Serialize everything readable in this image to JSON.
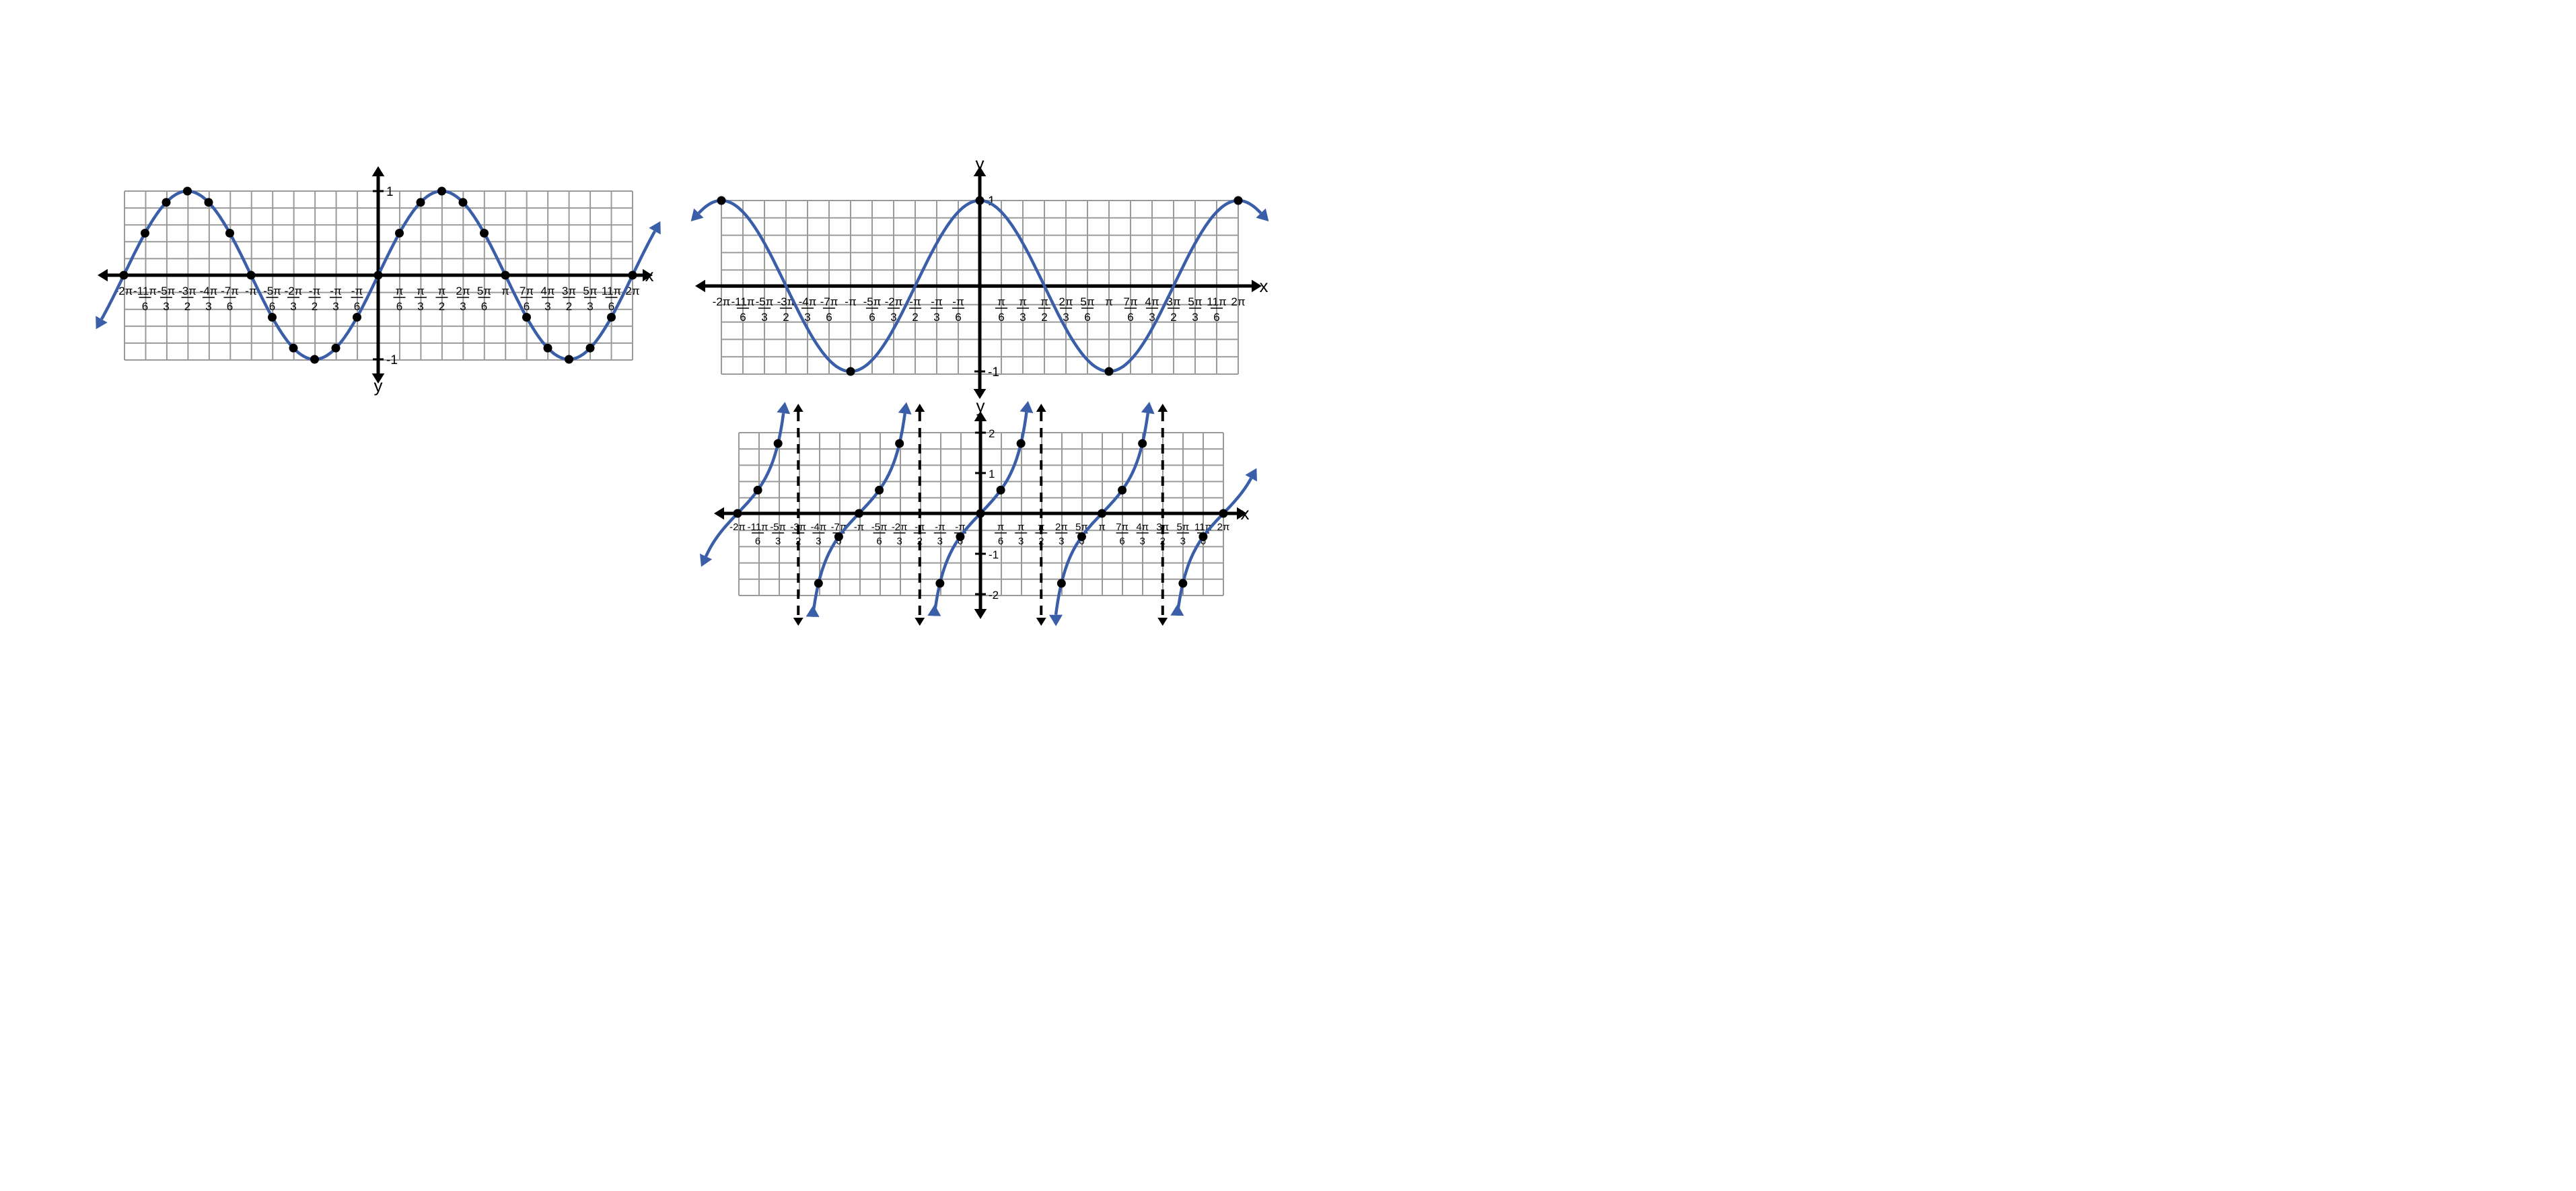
{
  "colors": {
    "curve": "#3a5fa8",
    "grid": "#9a9a9a",
    "axis": "#000000",
    "points": "#000000"
  },
  "icons": {
    "axis_arrow": "arrowhead",
    "curve_arrow": "arrowhead"
  },
  "chart_data": [
    {
      "type": "line",
      "function": "sin",
      "xlim": [
        -6.2832,
        6.2832
      ],
      "ylim": [
        -1,
        1
      ],
      "xlabel": "x",
      "ylabel": "y",
      "grid": true,
      "x_tick_labels": [
        {
          "num": "-2π",
          "den": "",
          "value": -6.2832
        },
        {
          "num": "-11π",
          "den": "6",
          "value": -5.7596
        },
        {
          "num": "-5π",
          "den": "3",
          "value": -5.236
        },
        {
          "num": "-3π",
          "den": "2",
          "value": -4.7124
        },
        {
          "num": "-4π",
          "den": "3",
          "value": -4.1888
        },
        {
          "num": "-7π",
          "den": "6",
          "value": -3.6652
        },
        {
          "num": "-π",
          "den": "",
          "value": -3.1416
        },
        {
          "num": "-5π",
          "den": "6",
          "value": -2.618
        },
        {
          "num": "-2π",
          "den": "3",
          "value": -2.0944
        },
        {
          "num": "-π",
          "den": "2",
          "value": -1.5708
        },
        {
          "num": "-π",
          "den": "3",
          "value": -1.0472
        },
        {
          "num": "-π",
          "den": "6",
          "value": -0.5236
        },
        {
          "num": "π",
          "den": "6",
          "value": 0.5236
        },
        {
          "num": "π",
          "den": "3",
          "value": 1.0472
        },
        {
          "num": "π",
          "den": "2",
          "value": 1.5708
        },
        {
          "num": "2π",
          "den": "3",
          "value": 2.0944
        },
        {
          "num": "5π",
          "den": "6",
          "value": 2.618
        },
        {
          "num": "π",
          "den": "",
          "value": 3.1416
        },
        {
          "num": "7π",
          "den": "6",
          "value": 3.6652
        },
        {
          "num": "4π",
          "den": "3",
          "value": 4.1888
        },
        {
          "num": "3π",
          "den": "2",
          "value": 4.7124
        },
        {
          "num": "5π",
          "den": "3",
          "value": 5.236
        },
        {
          "num": "11π",
          "den": "6",
          "value": 5.7596
        },
        {
          "num": "2π",
          "den": "",
          "value": 6.2832
        }
      ],
      "y_tick_labels": [
        {
          "text": "1",
          "value": 1
        },
        {
          "text": "-1",
          "value": -1
        }
      ],
      "series": [
        {
          "x": [
            -6.2832,
            -5.7596,
            -5.236,
            -4.7124,
            -4.1888,
            -3.6652,
            -3.1416,
            -2.618,
            -2.0944,
            -1.5708,
            -1.0472,
            -0.5236,
            0,
            0.5236,
            1.0472,
            1.5708,
            2.0944,
            2.618,
            3.1416,
            3.6652,
            4.1888,
            4.7124,
            5.236,
            5.7596,
            6.2832
          ],
          "y": [
            0,
            0.5,
            0.866,
            1,
            0.866,
            0.5,
            0,
            -0.5,
            -0.866,
            -1,
            -0.866,
            -0.5,
            0,
            0.5,
            0.866,
            1,
            0.866,
            0.5,
            0,
            -0.5,
            -0.866,
            -1,
            -0.866,
            -0.5,
            0
          ]
        }
      ]
    },
    {
      "type": "line",
      "function": "cos",
      "xlim": [
        -6.2832,
        6.2832
      ],
      "ylim": [
        -1,
        1
      ],
      "xlabel": "x",
      "ylabel": "y",
      "grid": true,
      "x_tick_labels": [
        {
          "num": "-2π",
          "den": "",
          "value": -6.2832
        },
        {
          "num": "-11π",
          "den": "6",
          "value": -5.7596
        },
        {
          "num": "-5π",
          "den": "3",
          "value": -5.236
        },
        {
          "num": "-3π",
          "den": "2",
          "value": -4.7124
        },
        {
          "num": "-4π",
          "den": "3",
          "value": -4.1888
        },
        {
          "num": "-7π",
          "den": "6",
          "value": -3.6652
        },
        {
          "num": "-π",
          "den": "",
          "value": -3.1416
        },
        {
          "num": "-5π",
          "den": "6",
          "value": -2.618
        },
        {
          "num": "-2π",
          "den": "3",
          "value": -2.0944
        },
        {
          "num": "-π",
          "den": "2",
          "value": -1.5708
        },
        {
          "num": "-π",
          "den": "3",
          "value": -1.0472
        },
        {
          "num": "-π",
          "den": "6",
          "value": -0.5236
        },
        {
          "num": "π",
          "den": "6",
          "value": 0.5236
        },
        {
          "num": "π",
          "den": "3",
          "value": 1.0472
        },
        {
          "num": "π",
          "den": "2",
          "value": 1.5708
        },
        {
          "num": "2π",
          "den": "3",
          "value": 2.0944
        },
        {
          "num": "5π",
          "den": "6",
          "value": 2.618
        },
        {
          "num": "π",
          "den": "",
          "value": 3.1416
        },
        {
          "num": "7π",
          "den": "6",
          "value": 3.6652
        },
        {
          "num": "4π",
          "den": "3",
          "value": 4.1888
        },
        {
          "num": "3π",
          "den": "2",
          "value": 4.7124
        },
        {
          "num": "5π",
          "den": "3",
          "value": 5.236
        },
        {
          "num": "11π",
          "den": "6",
          "value": 5.7596
        },
        {
          "num": "2π",
          "den": "",
          "value": 6.2832
        }
      ],
      "y_tick_labels": [
        {
          "text": "1",
          "value": 1
        },
        {
          "text": "-1",
          "value": -1
        }
      ],
      "series": [
        {
          "x": [
            -6.2832,
            -3.1416,
            0,
            3.1416,
            6.2832
          ],
          "y": [
            1,
            -1,
            1,
            -1,
            1
          ]
        }
      ]
    },
    {
      "type": "line",
      "function": "tan",
      "xlim": [
        -6.2832,
        6.2832
      ],
      "ylim": [
        -2,
        2
      ],
      "xlabel": "x",
      "ylabel": "y",
      "grid": true,
      "asymptotes": [
        -4.7124,
        -1.5708,
        1.5708,
        4.7124
      ],
      "x_tick_labels": [
        {
          "num": "-2π",
          "den": "",
          "value": -6.2832
        },
        {
          "num": "-11π",
          "den": "6",
          "value": -5.7596
        },
        {
          "num": "-5π",
          "den": "3",
          "value": -5.236
        },
        {
          "num": "-3π",
          "den": "2",
          "value": -4.7124
        },
        {
          "num": "-4π",
          "den": "3",
          "value": -4.1888
        },
        {
          "num": "-7π",
          "den": "6",
          "value": -3.6652
        },
        {
          "num": "-π",
          "den": "",
          "value": -3.1416
        },
        {
          "num": "-5π",
          "den": "6",
          "value": -2.618
        },
        {
          "num": "-2π",
          "den": "3",
          "value": -2.0944
        },
        {
          "num": "-π",
          "den": "2",
          "value": -1.5708
        },
        {
          "num": "-π",
          "den": "3",
          "value": -1.0472
        },
        {
          "num": "-π",
          "den": "6",
          "value": -0.5236
        },
        {
          "num": "π",
          "den": "6",
          "value": 0.5236
        },
        {
          "num": "π",
          "den": "3",
          "value": 1.0472
        },
        {
          "num": "π",
          "den": "2",
          "value": 1.5708
        },
        {
          "num": "2π",
          "den": "3",
          "value": 2.0944
        },
        {
          "num": "5π",
          "den": "6",
          "value": 2.618
        },
        {
          "num": "π",
          "den": "",
          "value": 3.1416
        },
        {
          "num": "7π",
          "den": "6",
          "value": 3.6652
        },
        {
          "num": "4π",
          "den": "3",
          "value": 4.1888
        },
        {
          "num": "3π",
          "den": "2",
          "value": 4.7124
        },
        {
          "num": "5π",
          "den": "3",
          "value": 5.236
        },
        {
          "num": "11π",
          "den": "6",
          "value": 5.7596
        },
        {
          "num": "2π",
          "den": "",
          "value": 6.2832
        }
      ],
      "y_tick_labels": [
        {
          "text": "2",
          "value": 2
        },
        {
          "text": "1",
          "value": 1
        },
        {
          "text": "-1",
          "value": -1
        },
        {
          "text": "-2",
          "value": -2
        }
      ],
      "series": [
        {
          "x": [
            -6.2832,
            -5.7596,
            -5.236,
            -4.1888,
            -3.6652,
            -3.1416,
            -2.618,
            -2.0944,
            -1.0472,
            -0.5236,
            0,
            0.5236,
            1.0472,
            2.0944,
            2.618,
            3.1416,
            3.6652,
            4.1888,
            5.236,
            5.7596,
            6.2832
          ],
          "y": [
            0,
            0.577,
            1.732,
            -1.732,
            -0.577,
            0,
            0.577,
            1.732,
            -1.732,
            -0.577,
            0,
            0.577,
            1.732,
            -1.732,
            -0.577,
            0,
            0.577,
            1.732,
            -1.732,
            -0.577,
            0
          ]
        }
      ]
    }
  ]
}
